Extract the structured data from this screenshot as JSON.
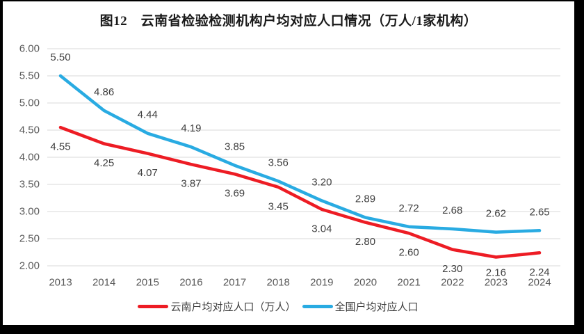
{
  "chart_data": {
    "type": "line",
    "title": "图12　云南省检验检测机构户均对应人口情况（万人/1家机构）",
    "categories": [
      "2013",
      "2014",
      "2015",
      "2016",
      "2017",
      "2018",
      "2019",
      "2020",
      "2021",
      "2022",
      "2023",
      "2024"
    ],
    "series": [
      {
        "name": "云南户均对应人口（万人）",
        "color": "#ED1C24",
        "label_position": "below",
        "values": [
          4.55,
          4.25,
          4.07,
          3.87,
          3.69,
          3.45,
          3.04,
          2.8,
          2.6,
          2.3,
          2.16,
          2.24
        ]
      },
      {
        "name": "全国户均对应人口",
        "color": "#29ABE2",
        "label_position": "above",
        "values": [
          5.5,
          4.86,
          4.44,
          4.19,
          3.85,
          3.56,
          3.2,
          2.89,
          2.72,
          2.68,
          2.62,
          2.65
        ]
      }
    ],
    "ylim": [
      2.0,
      6.0
    ],
    "ytick_labels": [
      "6.00",
      "5.50",
      "5.00",
      "4.50",
      "4.00",
      "3.50",
      "3.00",
      "2.50",
      "2.00"
    ],
    "grid": true,
    "legend_position": "bottom",
    "value_label_format": "0.00"
  },
  "colors": {
    "yunnan_line": "#ED1C24",
    "national_line": "#29ABE2",
    "gridline": "#D9D9D9",
    "axis_text": "#595959",
    "value_label_text": "#404040",
    "title_text": "#1A1A1A",
    "frame": "#000000",
    "background": "#FFFFFF"
  }
}
